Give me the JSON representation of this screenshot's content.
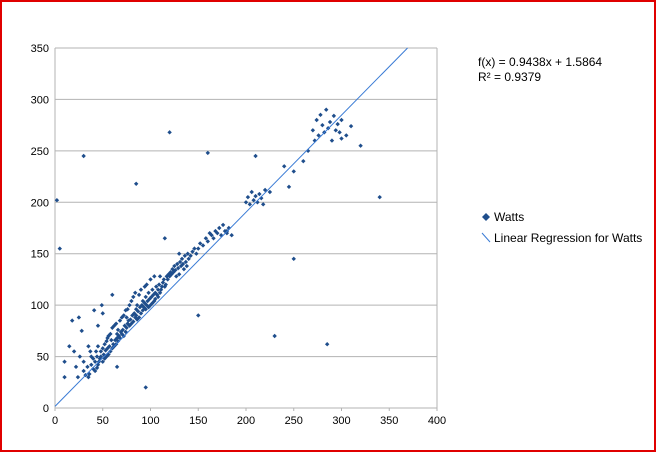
{
  "chart_data": {
    "type": "scatter",
    "xlim": [
      0,
      400
    ],
    "ylim": [
      0,
      350
    ],
    "x_ticks": [
      0,
      50,
      100,
      150,
      200,
      250,
      300,
      350,
      400
    ],
    "y_ticks": [
      0,
      50,
      100,
      150,
      200,
      250,
      300,
      350
    ],
    "grid": {
      "horizontal": true,
      "vertical": false
    },
    "legend_position": "right",
    "series": [
      {
        "name": "Watts",
        "color": "#1f4e8c",
        "marker": "diamond",
        "x": [
          2,
          5,
          10,
          15,
          18,
          20,
          22,
          24,
          25,
          26,
          28,
          30,
          30,
          32,
          34,
          35,
          35,
          36,
          37,
          38,
          38,
          40,
          40,
          41,
          42,
          42,
          43,
          44,
          44,
          45,
          45,
          46,
          47,
          48,
          48,
          49,
          50,
          50,
          51,
          52,
          52,
          53,
          54,
          54,
          55,
          55,
          56,
          56,
          57,
          58,
          58,
          59,
          60,
          60,
          61,
          62,
          62,
          63,
          64,
          64,
          65,
          65,
          66,
          66,
          67,
          68,
          68,
          69,
          70,
          70,
          71,
          72,
          72,
          73,
          74,
          74,
          75,
          75,
          76,
          76,
          77,
          78,
          78,
          79,
          80,
          80,
          81,
          82,
          82,
          83,
          84,
          84,
          85,
          85,
          86,
          86,
          87,
          88,
          88,
          89,
          90,
          90,
          91,
          92,
          92,
          93,
          94,
          94,
          95,
          95,
          96,
          96,
          97,
          98,
          98,
          99,
          100,
          100,
          101,
          102,
          102,
          103,
          104,
          104,
          105,
          105,
          106,
          107,
          108,
          108,
          109,
          110,
          110,
          111,
          112,
          113,
          114,
          115,
          116,
          117,
          118,
          119,
          120,
          121,
          122,
          123,
          124,
          125,
          126,
          127,
          128,
          129,
          130,
          131,
          132,
          133,
          134,
          135,
          136,
          137,
          138,
          139,
          140,
          142,
          144,
          146,
          148,
          150,
          152,
          155,
          158,
          160,
          162,
          164,
          166,
          168,
          170,
          172,
          174,
          176,
          178,
          180,
          182,
          185,
          200,
          202,
          204,
          206,
          208,
          210,
          212,
          214,
          216,
          218,
          220,
          225,
          240,
          245,
          250,
          260,
          265,
          270,
          272,
          274,
          276,
          278,
          280,
          282,
          284,
          286,
          288,
          290,
          292,
          294,
          296,
          298,
          300,
          305,
          310,
          320,
          340,
          85,
          120,
          210,
          300,
          160,
          115,
          30,
          285,
          95,
          65,
          150,
          50,
          10,
          45,
          60,
          130,
          180,
          230,
          250
        ],
        "y": [
          202,
          155,
          45,
          60,
          85,
          55,
          40,
          30,
          88,
          50,
          75,
          36,
          45,
          32,
          40,
          30,
          60,
          33,
          55,
          50,
          42,
          38,
          48,
          95,
          36,
          45,
          55,
          39,
          50,
          42,
          60,
          45,
          48,
          50,
          55,
          100,
          45,
          58,
          52,
          48,
          62,
          56,
          50,
          65,
          58,
          68,
          52,
          70,
          60,
          55,
          72,
          66,
          58,
          78,
          62,
          60,
          80,
          66,
          62,
          82,
          68,
          72,
          65,
          76,
          70,
          68,
          85,
          74,
          72,
          88,
          76,
          70,
          90,
          80,
          74,
          95,
          78,
          88,
          82,
          96,
          85,
          80,
          100,
          86,
          82,
          104,
          90,
          84,
          108,
          92,
          88,
          112,
          96,
          90,
          86,
          100,
          94,
          88,
          110,
          98,
          92,
          115,
          100,
          95,
          104,
          98,
          118,
          102,
          96,
          108,
          100,
          120,
          104,
          98,
          112,
          106,
          100,
          125,
          108,
          102,
          115,
          110,
          104,
          128,
          112,
          106,
          118,
          110,
          115,
          108,
          120,
          112,
          128,
          115,
          118,
          122,
          125,
          118,
          120,
          128,
          125,
          130,
          128,
          132,
          130,
          135,
          132,
          138,
          134,
          128,
          140,
          136,
          130,
          142,
          138,
          145,
          140,
          135,
          148,
          142,
          138,
          150,
          145,
          148,
          152,
          155,
          150,
          155,
          160,
          158,
          165,
          162,
          170,
          168,
          165,
          172,
          170,
          175,
          168,
          178,
          172,
          170,
          175,
          168,
          200,
          205,
          198,
          210,
          202,
          206,
          200,
          208,
          204,
          198,
          212,
          210,
          235,
          215,
          230,
          240,
          250,
          270,
          260,
          280,
          265,
          285,
          275,
          268,
          290,
          272,
          278,
          260,
          284,
          270,
          276,
          268,
          280,
          265,
          274,
          255,
          205,
          218,
          268,
          245,
          262,
          248,
          165,
          245,
          62,
          20,
          40,
          90,
          92,
          30,
          80,
          110,
          150,
          172,
          70,
          145
        ]
      },
      {
        "name": "Linear Regression for Watts",
        "color": "#3a7bd5",
        "type": "line",
        "slope": 0.9438,
        "intercept": 1.5864
      }
    ],
    "annotations": {
      "equation": "f(x) = 0.9438x + 1.5864",
      "r_squared": "R² = 0.9379"
    }
  },
  "legend": {
    "items": [
      {
        "label": "Watts",
        "symbol": "diamond"
      },
      {
        "label": "Linear Regression for Watts",
        "symbol": "line"
      }
    ]
  }
}
